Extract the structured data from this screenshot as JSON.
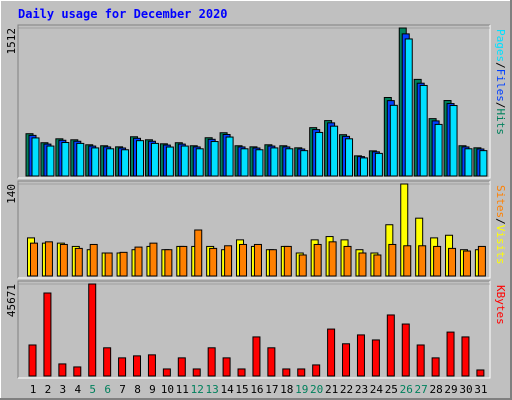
{
  "title": "Daily usage for December 2020",
  "legend_separator": "/",
  "chart_data": [
    {
      "type": "bar",
      "ylim": [
        0,
        1512
      ],
      "yticks": [
        1512
      ],
      "series": [
        {
          "name": "Hits",
          "color": "#00805c",
          "values": [
            432,
            340,
            380,
            370,
            319,
            309,
            298,
            401,
            370,
            329,
            340,
            309,
            391,
            442,
            309,
            298,
            319,
            309,
            288,
            494,
            566,
            422,
            206,
            257,
            802,
            1512,
            987,
            586,
            771,
            309,
            288
          ]
        },
        {
          "name": "Files",
          "color": "#0040ff",
          "values": [
            415,
            326,
            365,
            355,
            306,
            297,
            286,
            385,
            355,
            316,
            326,
            297,
            375,
            424,
            297,
            286,
            306,
            297,
            276,
            474,
            543,
            405,
            198,
            247,
            770,
            1452,
            948,
            563,
            740,
            297,
            276
          ]
        },
        {
          "name": "Pages",
          "color": "#00e0ff",
          "values": [
            389,
            306,
            342,
            333,
            287,
            278,
            268,
            361,
            333,
            296,
            306,
            278,
            352,
            398,
            278,
            268,
            287,
            278,
            259,
            445,
            509,
            380,
            185,
            231,
            722,
            1400,
            925,
            527,
            720,
            278,
            259
          ]
        }
      ]
    },
    {
      "type": "bar",
      "ylim": [
        0,
        140
      ],
      "yticks": [
        140
      ],
      "series": [
        {
          "name": "Visits",
          "color": "#ffff00",
          "values": [
            58,
            50,
            50,
            45,
            40,
            35,
            35,
            40,
            45,
            40,
            45,
            45,
            45,
            40,
            55,
            45,
            40,
            45,
            35,
            55,
            60,
            55,
            40,
            35,
            78,
            140,
            88,
            58,
            62,
            40,
            40
          ]
        },
        {
          "name": "Sites",
          "color": "#ff8000",
          "values": [
            50,
            52,
            48,
            42,
            48,
            35,
            36,
            44,
            50,
            40,
            45,
            70,
            42,
            46,
            48,
            48,
            40,
            45,
            32,
            48,
            52,
            45,
            35,
            32,
            48,
            46,
            46,
            45,
            42,
            38,
            45
          ]
        }
      ]
    },
    {
      "type": "bar",
      "ylim": [
        0,
        45671
      ],
      "yticks": [
        45671
      ],
      "categories": [
        "1",
        "2",
        "3",
        "4",
        "5",
        "6",
        "7",
        "8",
        "9",
        "10",
        "11",
        "12",
        "13",
        "14",
        "15",
        "16",
        "17",
        "18",
        "19",
        "20",
        "21",
        "22",
        "23",
        "24",
        "25",
        "26",
        "27",
        "28",
        "29",
        "30",
        "31"
      ],
      "category_colors": [
        "#000000",
        "#000000",
        "#000000",
        "#000000",
        "#00805c",
        "#00805c",
        "#000000",
        "#000000",
        "#000000",
        "#000000",
        "#000000",
        "#00805c",
        "#00805c",
        "#000000",
        "#000000",
        "#000000",
        "#000000",
        "#000000",
        "#00805c",
        "#00805c",
        "#000000",
        "#000000",
        "#000000",
        "#000000",
        "#000000",
        "#00805c",
        "#00805c",
        "#000000",
        "#000000",
        "#000000",
        "#000000"
      ],
      "series": [
        {
          "name": "KBytes",
          "color": "#ff0000",
          "values": [
            15400,
            41200,
            6000,
            4500,
            45671,
            14000,
            9000,
            10000,
            10500,
            3500,
            9000,
            3500,
            14000,
            9000,
            3500,
            19400,
            14000,
            3500,
            3500,
            5500,
            23300,
            16000,
            20400,
            17900,
            30300,
            25800,
            15400,
            9000,
            21800,
            19400,
            3000
          ]
        }
      ]
    }
  ]
}
